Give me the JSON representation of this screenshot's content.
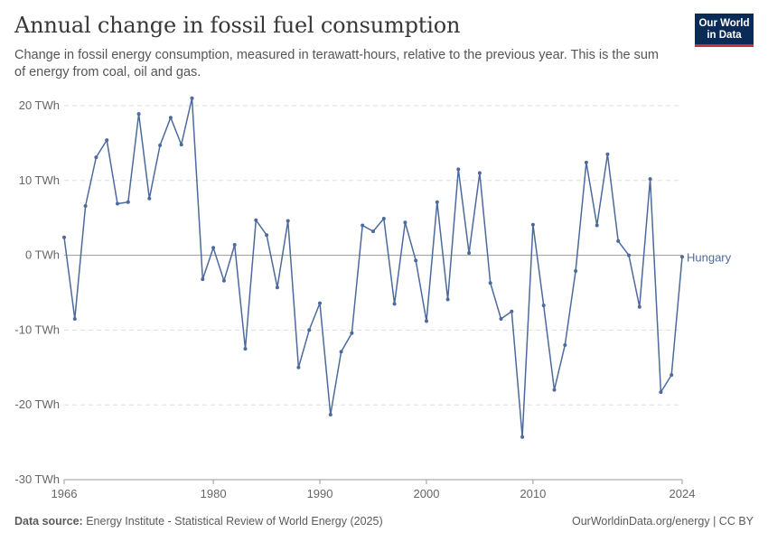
{
  "title": "Annual change in fossil fuel consumption",
  "subtitle": "Change in fossil energy consumption, measured in terawatt-hours, relative to the previous year. This is the sum of energy from coal, oil and gas.",
  "logo": {
    "line1": "Our World",
    "line2": "in Data"
  },
  "footer": {
    "source_label": "Data source:",
    "source_text": "Energy Institute - Statistical Review of World Energy (2025)",
    "right_text": "OurWorldinData.org/energy | CC BY"
  },
  "colors": {
    "series": "#4c6a9c",
    "grid": "#dddddd",
    "zero_line": "#9a9a9a",
    "logo_bg": "#0b2b57",
    "logo_accent": "#c4323a"
  },
  "chart_data": {
    "type": "line",
    "title": "Annual change in fossil fuel consumption",
    "xlim": [
      1966,
      2024
    ],
    "ylim": [
      -30,
      20
    ],
    "y_ticks": [
      20,
      10,
      0,
      -10,
      -20,
      -30
    ],
    "y_tick_labels": [
      "20 TWh",
      "10 TWh",
      "0 TWh",
      "-10 TWh",
      "-20 TWh",
      "-30 TWh"
    ],
    "x_ticks": [
      1966,
      1980,
      1990,
      2000,
      2010,
      2024
    ],
    "x_tick_labels": [
      "1966",
      "1980",
      "1990",
      "2000",
      "2010",
      "2024"
    ],
    "grid": "horizontal dashed",
    "legend_placement": "right end of line",
    "series": [
      {
        "name": "Hungary",
        "x": [
          1966,
          1967,
          1968,
          1969,
          1970,
          1971,
          1972,
          1973,
          1974,
          1975,
          1976,
          1977,
          1978,
          1979,
          1980,
          1981,
          1982,
          1983,
          1984,
          1985,
          1986,
          1987,
          1988,
          1989,
          1990,
          1991,
          1992,
          1993,
          1994,
          1995,
          1996,
          1997,
          1998,
          1999,
          2000,
          2001,
          2002,
          2003,
          2004,
          2005,
          2006,
          2007,
          2008,
          2009,
          2010,
          2011,
          2012,
          2013,
          2014,
          2015,
          2016,
          2017,
          2018,
          2019,
          2020,
          2021,
          2022,
          2023,
          2024
        ],
        "values": [
          2.4,
          -8.5,
          6.6,
          13.1,
          15.4,
          6.9,
          7.1,
          18.9,
          7.6,
          14.7,
          18.4,
          14.8,
          21.0,
          -3.2,
          1.0,
          -3.4,
          1.4,
          -12.5,
          4.7,
          2.7,
          -4.3,
          4.6,
          -15.0,
          -10.0,
          -6.4,
          -21.3,
          -12.9,
          -10.4,
          4.0,
          3.2,
          4.9,
          -6.5,
          4.4,
          -0.7,
          -8.8,
          7.1,
          -5.9,
          11.5,
          0.3,
          11.0,
          -3.7,
          -8.5,
          -7.5,
          -24.3,
          4.1,
          -6.7,
          -18.0,
          -12.0,
          -2.1,
          12.4,
          4.0,
          13.5,
          1.9,
          0.0,
          -6.9,
          10.2,
          -18.3,
          -16.0,
          -0.2
        ]
      }
    ]
  }
}
